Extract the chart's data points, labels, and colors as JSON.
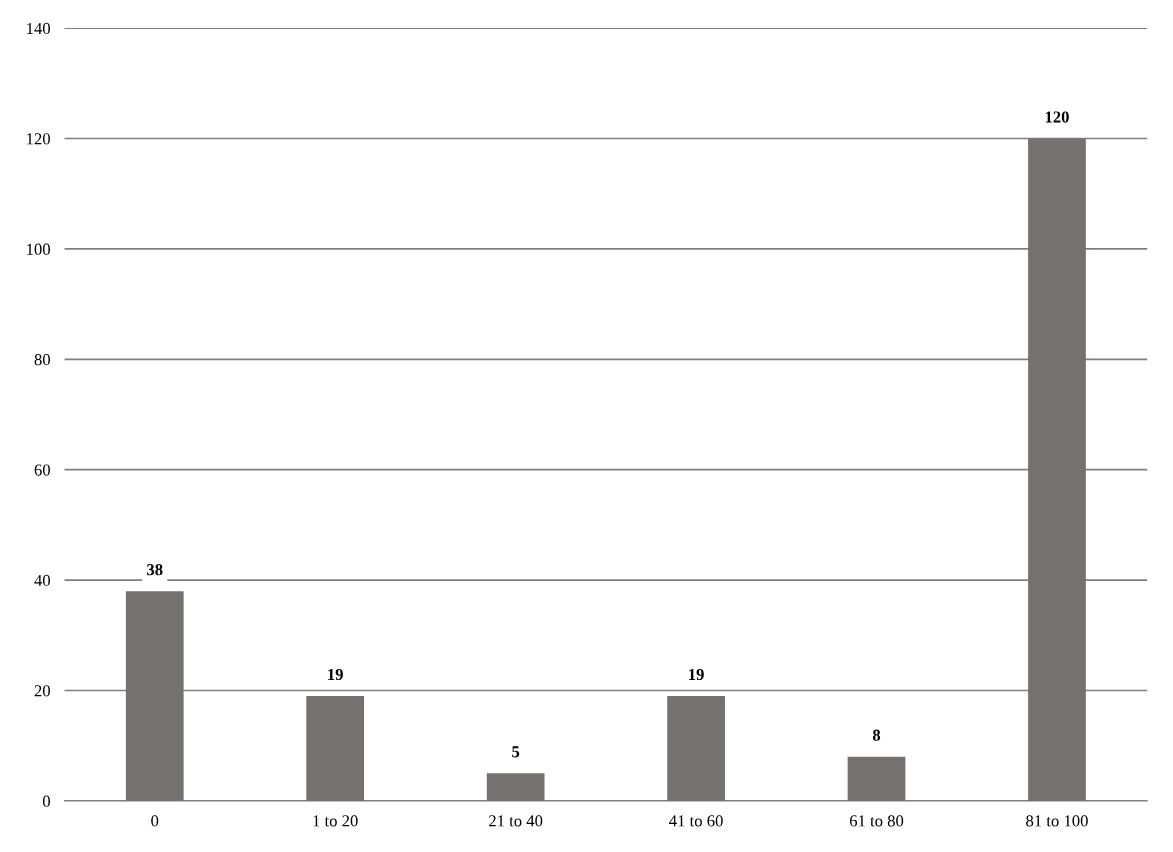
{
  "chart_data": {
    "type": "bar",
    "categories": [
      "0",
      "1 to 20",
      "21 to 40",
      "41 to 60",
      "61 to 80",
      "81 to 100"
    ],
    "values": [
      38,
      19,
      5,
      19,
      8,
      120
    ],
    "color": "#767171",
    "ylim": [
      0,
      140
    ],
    "yticks": [
      0,
      20,
      40,
      60,
      80,
      100,
      120,
      140
    ],
    "grid": "y",
    "data_labels": true,
    "legend": false
  }
}
